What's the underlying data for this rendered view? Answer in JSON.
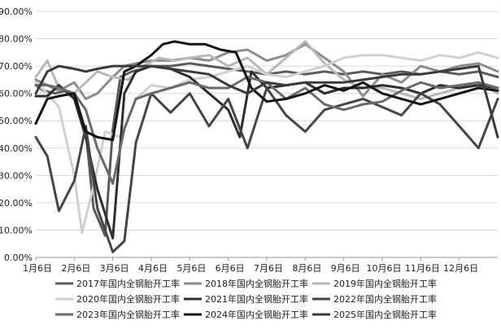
{
  "chart_data": {
    "type": "line",
    "title": "",
    "xlabel": "",
    "ylabel": "",
    "ylim": [
      0,
      90
    ],
    "y_ticks": [
      0,
      10,
      20,
      30,
      40,
      50,
      60,
      70,
      80,
      90
    ],
    "y_tick_labels": [
      "0.00%",
      "10.00%",
      "20.00%",
      "30.00%",
      "40.00%",
      "50.00%",
      "60.00%",
      "70.00%",
      "80.00%",
      "90.00%"
    ],
    "x_axis_range": [
      0,
      12
    ],
    "x_tick_labels": [
      "1月6日",
      "2月6日",
      "3月6日",
      "4月6日",
      "5月6日",
      "6月6日",
      "7月6日",
      "8月6日",
      "9月6日",
      "10月6日",
      "11月6日",
      "12月6日"
    ],
    "grid": "horizontal",
    "legend_position": "bottom",
    "series": [
      {
        "name": "2017年国内全钢胎开工率",
        "color": "#5a5a5a",
        "x": [
          0,
          0.2,
          0.5,
          0.8,
          1.0,
          1.3,
          1.5,
          1.8,
          2.0,
          2.2,
          2.5,
          3.0,
          3.5,
          4.0,
          4.5,
          5.0,
          5.5,
          6.0,
          6.5,
          7.0,
          7.5,
          8.0,
          8.5,
          9.0,
          9.5,
          10.0,
          10.5,
          11.0,
          11.5,
          12.0
        ],
        "values": [
          63,
          61,
          60,
          61,
          59,
          46,
          18,
          8,
          47,
          66,
          68,
          70,
          70,
          71,
          70,
          69,
          68,
          67,
          68,
          67,
          68,
          67,
          68,
          67,
          68,
          67,
          68,
          67,
          68,
          66
        ]
      },
      {
        "name": "2018年国内全钢胎开工率",
        "color": "#8c8c8c",
        "x": [
          0,
          0.3,
          0.6,
          1.0,
          1.3,
          1.6,
          2.0,
          2.3,
          2.6,
          3.0,
          3.5,
          4.0,
          4.5,
          5.0,
          5.5,
          6.0,
          6.5,
          7.0,
          7.5,
          8.0,
          8.5,
          9.0,
          9.5,
          10.0,
          10.5,
          11.0,
          11.5,
          12.0
        ],
        "values": [
          65,
          63,
          61,
          64,
          58,
          60,
          66,
          70,
          71,
          72,
          72,
          73,
          72,
          75,
          76,
          72,
          74,
          78,
          73,
          68,
          59,
          67,
          64,
          70,
          68,
          70,
          71,
          68
        ]
      },
      {
        "name": "2019年国内全钢胎开工率",
        "color": "#b8b8b8",
        "x": [
          0,
          0.3,
          0.6,
          1.0,
          1.3,
          1.6,
          2.0,
          2.4,
          2.8,
          3.2,
          3.6,
          4.0,
          4.5,
          5.0,
          5.5,
          6.0,
          6.5,
          7.0,
          7.5,
          8.0,
          8.5,
          9.0,
          9.5,
          10.0,
          10.5,
          11.0,
          11.5,
          12.0
        ],
        "values": [
          66,
          72,
          62,
          60,
          64,
          68,
          66,
          65,
          70,
          73,
          72,
          73,
          74,
          70,
          73,
          67,
          73,
          79,
          71,
          65,
          62,
          62,
          60,
          58,
          60,
          62,
          64,
          60
        ]
      },
      {
        "name": "2020年国内全钢胎开工率",
        "color": "#d0d0d0",
        "x": [
          0,
          0.3,
          0.6,
          1.0,
          1.2,
          1.5,
          1.8,
          2.2,
          2.6,
          3.0,
          3.5,
          4.0,
          4.5,
          5.0,
          5.5,
          6.0,
          6.5,
          7.0,
          7.5,
          8.0,
          8.5,
          9.0,
          9.5,
          10.0,
          10.5,
          11.0,
          11.5,
          12.0
        ],
        "values": [
          64,
          60,
          55,
          30,
          9,
          26,
          46,
          44,
          58,
          63,
          62,
          65,
          66,
          68,
          70,
          67,
          66,
          68,
          70,
          73,
          74,
          74,
          73,
          72,
          74,
          73,
          75,
          73
        ]
      },
      {
        "name": "2021年国内全钢胎开工率",
        "color": "#2e2e2e",
        "x": [
          0,
          0.3,
          0.6,
          1.0,
          1.3,
          1.6,
          2.0,
          2.3,
          2.6,
          3.0,
          3.5,
          4.0,
          4.5,
          5.0,
          5.3,
          5.6,
          6.0,
          6.5,
          7.0,
          7.5,
          8.0,
          8.5,
          9.0,
          9.5,
          10.0,
          10.5,
          11.0,
          11.5,
          12.0
        ],
        "values": [
          59,
          59,
          63,
          58,
          44,
          25,
          7,
          60,
          68,
          70,
          69,
          66,
          60,
          54,
          44,
          68,
          62,
          63,
          64,
          60,
          62,
          62,
          63,
          62,
          60,
          63,
          62,
          63,
          62
        ]
      },
      {
        "name": "2022年国内全钢胎开工率",
        "color": "#454545",
        "x": [
          0,
          0.3,
          0.6,
          1.0,
          1.3,
          1.6,
          2.0,
          2.3,
          2.6,
          3.0,
          3.5,
          4.0,
          4.5,
          5.0,
          5.5,
          6.0,
          6.5,
          7.0,
          7.5,
          8.0,
          8.5,
          9.0,
          9.5,
          10.0,
          10.5,
          11.0,
          11.5,
          12.0
        ],
        "values": [
          44,
          37,
          17,
          28,
          48,
          18,
          2,
          6,
          42,
          60,
          53,
          60,
          48,
          58,
          40,
          62,
          52,
          46,
          54,
          56,
          58,
          55,
          52,
          60,
          56,
          48,
          40,
          58
        ]
      },
      {
        "name": "2023年国内全钢胎开工率",
        "color": "#6a6a6a",
        "x": [
          0,
          0.3,
          0.6,
          1.0,
          1.3,
          1.6,
          2.0,
          2.3,
          2.6,
          3.0,
          3.5,
          4.0,
          4.5,
          5.0,
          5.5,
          6.0,
          6.5,
          7.0,
          7.5,
          8.0,
          8.5,
          9.0,
          9.5,
          10.0,
          10.5,
          11.0,
          11.5,
          12.0
        ],
        "values": [
          63,
          63,
          62,
          60,
          54,
          40,
          27,
          47,
          58,
          60,
          62,
          64,
          62,
          62,
          66,
          64,
          58,
          62,
          56,
          54,
          56,
          57,
          61,
          64,
          62,
          63,
          64,
          62
        ]
      },
      {
        "name": "2024年国内全钢胎开工率",
        "color": "#141414",
        "x": [
          0,
          0.3,
          0.6,
          1.0,
          1.3,
          1.6,
          2.0,
          2.3,
          2.6,
          3.0,
          3.3,
          3.6,
          4.0,
          4.4,
          4.8,
          5.2,
          5.6,
          6.0,
          6.5,
          7.0,
          7.5,
          8.0,
          8.5,
          9.0,
          9.5,
          10.0,
          10.5,
          11.0,
          11.5,
          12.0
        ],
        "values": [
          49,
          58,
          59,
          60,
          46,
          44,
          43,
          68,
          70,
          74,
          78,
          79,
          78,
          78,
          76,
          75,
          62,
          57,
          58,
          60,
          63,
          61,
          64,
          60,
          58,
          56,
          58,
          60,
          62,
          61
        ]
      },
      {
        "name": "2025年国内全钢胎开工率",
        "color": "#3a3a3a",
        "x": [
          0,
          0.3,
          0.6,
          1.0,
          1.3,
          1.6,
          2.0,
          2.3,
          2.6,
          3.0,
          3.5,
          4.0,
          4.5,
          5.0,
          5.5,
          6.0,
          6.5,
          7.0,
          7.5,
          8.0,
          8.5,
          9.0,
          9.5,
          10.0,
          10.5,
          11.0,
          11.5,
          12.0
        ],
        "values": [
          60,
          68,
          70,
          69,
          68,
          69,
          70,
          70,
          70,
          70,
          69,
          68,
          67,
          63,
          60,
          64,
          63,
          64,
          64,
          64,
          65,
          66,
          67,
          67,
          68,
          69,
          70,
          44
        ]
      }
    ]
  }
}
